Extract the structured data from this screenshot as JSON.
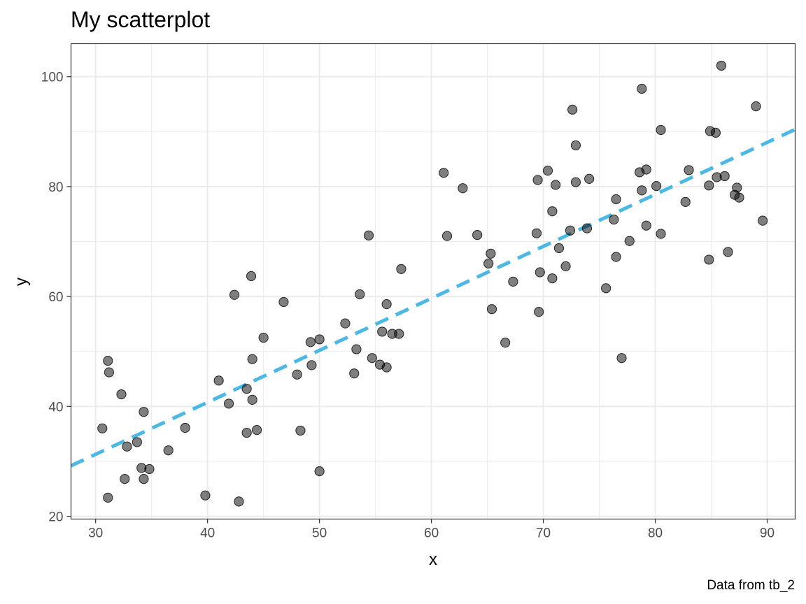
{
  "chart_data": {
    "type": "scatter",
    "title": "My scatterplot",
    "xlabel": "x",
    "ylabel": "y",
    "caption": "Data from tb_2",
    "xlim": [
      27.8,
      92.5
    ],
    "ylim": [
      19.5,
      106
    ],
    "x_ticks": [
      30,
      40,
      50,
      60,
      70,
      80,
      90
    ],
    "y_ticks": [
      20,
      40,
      60,
      80,
      100
    ],
    "grid": true,
    "point_color": "#000000",
    "point_opacity": 0.5,
    "line_color": "#4db8e3",
    "trend_line": {
      "style": "dashed",
      "x": [
        27.8,
        92.5
      ],
      "y": [
        29.2,
        90.4
      ]
    },
    "points": [
      {
        "x": 30.6,
        "y": 36.0
      },
      {
        "x": 31.1,
        "y": 48.3
      },
      {
        "x": 31.2,
        "y": 46.2
      },
      {
        "x": 31.1,
        "y": 23.4
      },
      {
        "x": 32.3,
        "y": 42.2
      },
      {
        "x": 32.6,
        "y": 26.8
      },
      {
        "x": 32.8,
        "y": 32.7
      },
      {
        "x": 33.7,
        "y": 33.5
      },
      {
        "x": 34.1,
        "y": 28.8
      },
      {
        "x": 34.3,
        "y": 26.8
      },
      {
        "x": 34.3,
        "y": 39.0
      },
      {
        "x": 34.8,
        "y": 28.6
      },
      {
        "x": 36.5,
        "y": 32.0
      },
      {
        "x": 38.0,
        "y": 36.1
      },
      {
        "x": 39.8,
        "y": 23.8
      },
      {
        "x": 41.0,
        "y": 44.7
      },
      {
        "x": 41.9,
        "y": 40.5
      },
      {
        "x": 42.4,
        "y": 60.3
      },
      {
        "x": 42.8,
        "y": 22.7
      },
      {
        "x": 43.5,
        "y": 35.2
      },
      {
        "x": 43.5,
        "y": 43.2
      },
      {
        "x": 43.9,
        "y": 63.7
      },
      {
        "x": 44.0,
        "y": 48.6
      },
      {
        "x": 44.0,
        "y": 41.2
      },
      {
        "x": 44.4,
        "y": 35.7
      },
      {
        "x": 45.0,
        "y": 52.5
      },
      {
        "x": 46.8,
        "y": 59.0
      },
      {
        "x": 48.0,
        "y": 45.8
      },
      {
        "x": 48.3,
        "y": 35.6
      },
      {
        "x": 49.2,
        "y": 51.7
      },
      {
        "x": 49.3,
        "y": 47.5
      },
      {
        "x": 50.0,
        "y": 52.2
      },
      {
        "x": 50.0,
        "y": 28.2
      },
      {
        "x": 52.3,
        "y": 55.1
      },
      {
        "x": 53.1,
        "y": 46.0
      },
      {
        "x": 53.3,
        "y": 50.4
      },
      {
        "x": 53.6,
        "y": 60.4
      },
      {
        "x": 54.4,
        "y": 71.1
      },
      {
        "x": 54.7,
        "y": 48.8
      },
      {
        "x": 55.4,
        "y": 47.6
      },
      {
        "x": 55.6,
        "y": 53.6
      },
      {
        "x": 56.0,
        "y": 58.6
      },
      {
        "x": 56.0,
        "y": 47.1
      },
      {
        "x": 56.5,
        "y": 53.2
      },
      {
        "x": 57.1,
        "y": 53.2
      },
      {
        "x": 57.3,
        "y": 65.0
      },
      {
        "x": 61.1,
        "y": 82.5
      },
      {
        "x": 61.4,
        "y": 71.0
      },
      {
        "x": 62.8,
        "y": 79.7
      },
      {
        "x": 64.1,
        "y": 71.2
      },
      {
        "x": 65.1,
        "y": 66.0
      },
      {
        "x": 65.3,
        "y": 67.8
      },
      {
        "x": 65.4,
        "y": 57.7
      },
      {
        "x": 66.6,
        "y": 51.6
      },
      {
        "x": 67.3,
        "y": 62.7
      },
      {
        "x": 69.4,
        "y": 71.5
      },
      {
        "x": 69.5,
        "y": 81.2
      },
      {
        "x": 69.6,
        "y": 57.2
      },
      {
        "x": 69.7,
        "y": 64.4
      },
      {
        "x": 70.4,
        "y": 82.9
      },
      {
        "x": 70.8,
        "y": 75.5
      },
      {
        "x": 70.8,
        "y": 63.3
      },
      {
        "x": 71.1,
        "y": 80.3
      },
      {
        "x": 71.4,
        "y": 68.8
      },
      {
        "x": 72.0,
        "y": 65.5
      },
      {
        "x": 72.4,
        "y": 72.0
      },
      {
        "x": 72.6,
        "y": 94.0
      },
      {
        "x": 72.9,
        "y": 80.8
      },
      {
        "x": 72.9,
        "y": 87.5
      },
      {
        "x": 73.9,
        "y": 72.4
      },
      {
        "x": 74.1,
        "y": 81.4
      },
      {
        "x": 75.6,
        "y": 61.5
      },
      {
        "x": 76.3,
        "y": 74.0
      },
      {
        "x": 76.5,
        "y": 77.7
      },
      {
        "x": 76.5,
        "y": 67.2
      },
      {
        "x": 77.0,
        "y": 48.8
      },
      {
        "x": 77.7,
        "y": 70.1
      },
      {
        "x": 78.6,
        "y": 82.6
      },
      {
        "x": 78.8,
        "y": 97.8
      },
      {
        "x": 78.8,
        "y": 79.3
      },
      {
        "x": 79.2,
        "y": 83.1
      },
      {
        "x": 79.2,
        "y": 72.9
      },
      {
        "x": 80.1,
        "y": 80.1
      },
      {
        "x": 80.5,
        "y": 90.3
      },
      {
        "x": 80.5,
        "y": 71.4
      },
      {
        "x": 82.7,
        "y": 77.2
      },
      {
        "x": 83.0,
        "y": 83.0
      },
      {
        "x": 84.8,
        "y": 80.2
      },
      {
        "x": 84.9,
        "y": 90.1
      },
      {
        "x": 84.8,
        "y": 66.7
      },
      {
        "x": 85.4,
        "y": 89.8
      },
      {
        "x": 85.5,
        "y": 81.7
      },
      {
        "x": 85.9,
        "y": 102.0
      },
      {
        "x": 86.2,
        "y": 81.9
      },
      {
        "x": 86.5,
        "y": 68.1
      },
      {
        "x": 87.1,
        "y": 78.5
      },
      {
        "x": 87.3,
        "y": 79.8
      },
      {
        "x": 87.5,
        "y": 78.0
      },
      {
        "x": 89.0,
        "y": 94.6
      },
      {
        "x": 89.6,
        "y": 73.8
      }
    ]
  }
}
